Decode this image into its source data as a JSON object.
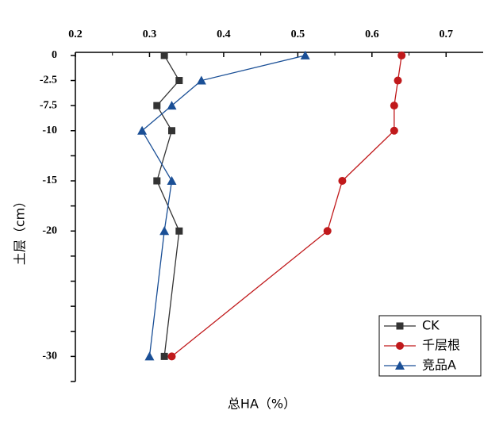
{
  "chart_data": {
    "type": "line",
    "xlabel": "总HA（%）",
    "ylabel": "土层（cm）",
    "y": [
      0,
      -1,
      -2,
      -3,
      -5,
      -7,
      -12
    ],
    "series": [
      {
        "name": "CK",
        "color": "#333333",
        "marker": "square",
        "values": [
          0.32,
          0.34,
          0.31,
          0.33,
          0.31,
          0.34,
          0.32
        ]
      },
      {
        "name": "千层根",
        "color": "#c0191b",
        "marker": "circle",
        "values": [
          0.64,
          0.635,
          0.63,
          0.63,
          0.56,
          0.54,
          0.33
        ]
      },
      {
        "name": "竞品A",
        "color": "#1a4f96",
        "marker": "triangle",
        "values": [
          0.51,
          0.37,
          0.33,
          0.29,
          0.33,
          0.32,
          0.3
        ]
      }
    ],
    "xlim": [
      0.2,
      0.75
    ],
    "xticks": [
      {
        "value": 0.2,
        "label": "0.2"
      },
      {
        "value": 0.3,
        "label": "0.3"
      },
      {
        "value": 0.4,
        "label": "0.4"
      },
      {
        "value": 0.5,
        "label": "0.5"
      },
      {
        "value": 0.6,
        "label": "0.6"
      },
      {
        "value": 0.7,
        "label": "0.7"
      }
    ],
    "xminor": [
      0.25,
      0.35,
      0.45,
      0.55,
      0.65
    ],
    "ylim": [
      -13,
      0.25
    ],
    "yticks": [
      0,
      {
        "value": -1,
        "label": "-2.5"
      },
      {
        "value": -2,
        "label": "-7.5"
      },
      {
        "value": -3,
        "label": "-10"
      },
      {
        "value": -5,
        "label": "-15"
      },
      {
        "value": -7,
        "label": "-20"
      },
      {
        "value": -12,
        "label": "-30"
      }
    ],
    "yminor": [
      -4,
      -6,
      -8,
      -9,
      -10,
      -11,
      -13
    ],
    "legend": "lower right"
  }
}
